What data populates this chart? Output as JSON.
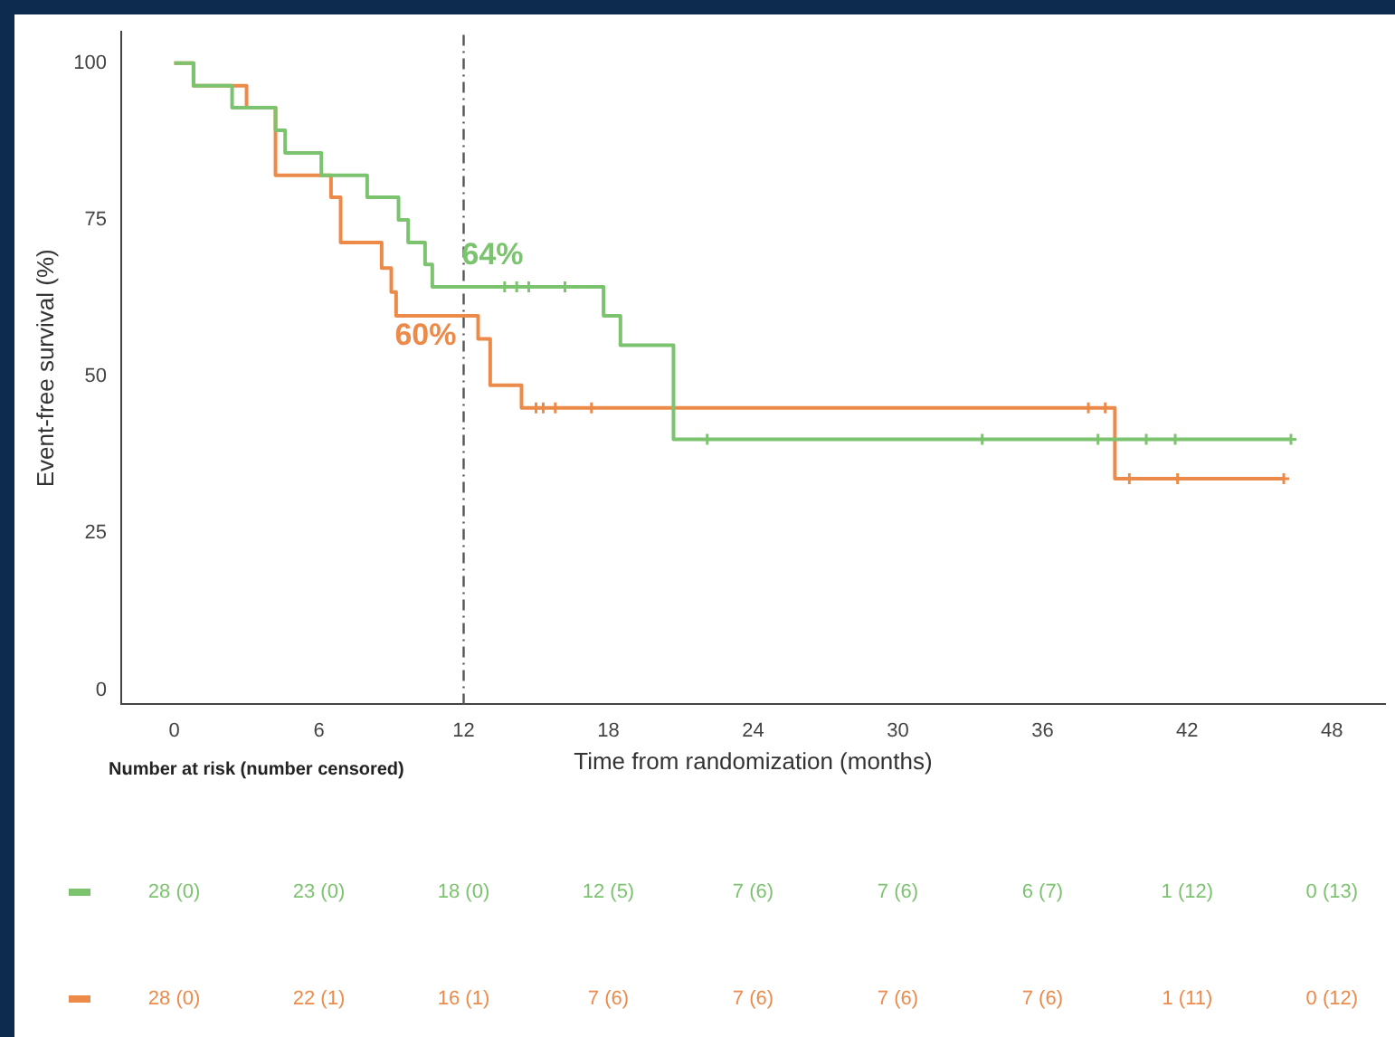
{
  "chart_data": {
    "type": "step",
    "xlabel": "Time from randomization (months)",
    "ylabel": "Event-free survival (%)",
    "xlim": [
      -2.2,
      50.2
    ],
    "xticks": [
      0,
      6,
      12,
      18,
      24,
      30,
      36,
      42,
      48
    ],
    "ylim": [
      -2.3,
      105
    ],
    "yticks": [
      0,
      25,
      50,
      75,
      100
    ],
    "grid": false,
    "legend": false,
    "line_style": "solid",
    "series": [
      {
        "color": "#7cc36f",
        "x": [
          0,
          0.8,
          2.4,
          4.2,
          4.6,
          6.1,
          8.0,
          9.3,
          9.7,
          10.4,
          10.7,
          17.8,
          18.5,
          20.7,
          46.3
        ],
        "values": [
          100,
          96.4,
          92.9,
          89.3,
          85.7,
          82.1,
          78.6,
          75,
          71.4,
          67.9,
          64.3,
          59.7,
          55,
          40,
          40
        ]
      },
      {
        "color": "#ec8a4a",
        "x": [
          0,
          0.8,
          3.0,
          4.2,
          6.5,
          6.9,
          8.6,
          9.0,
          9.2,
          12.6,
          13.1,
          14.4,
          39.0,
          46.0
        ],
        "values": [
          100,
          96.4,
          92.9,
          82.1,
          78.6,
          71.4,
          67.3,
          63.5,
          59.7,
          56,
          48.6,
          45,
          33.7,
          33.7
        ]
      },
      {
        "type": "scatter",
        "marker": "cross",
        "color": "#7cc36f",
        "x": [
          13.7,
          14.2,
          14.7,
          16.2,
          22.1,
          33.5,
          38.3,
          40.3,
          41.5,
          46.3
        ],
        "values": [
          64.3,
          64.3,
          64.3,
          64.3,
          40,
          40,
          40,
          40,
          40,
          40
        ]
      },
      {
        "type": "scatter",
        "marker": "cross",
        "color": "#ec8a4a",
        "x": [
          15.0,
          15.3,
          15.8,
          17.3,
          37.9,
          38.6,
          39.6,
          41.6,
          46.0
        ],
        "values": [
          45,
          45,
          45,
          45,
          45,
          45,
          33.7,
          33.7,
          33.7
        ]
      }
    ],
    "ref_lines": [
      {
        "axis": "x",
        "value": 12,
        "color": "#555555",
        "line_style": "dashed"
      }
    ],
    "annotations": [
      {
        "text": "64%",
        "x": 12,
        "y": 64
      },
      {
        "text": "60%",
        "x": 12,
        "y": 60
      },
      "Number at risk (number censored)",
      "28 (0)",
      "23 (0)",
      "18 (0)",
      "12 (5)",
      "7 (6)",
      "7 (6)",
      "6 (7)",
      "1 (12)",
      "0 (13)",
      "28 (0)",
      "22 (1)",
      "16 (1)",
      "7 (6)",
      "7 (6)",
      "7 (6)",
      "7 (6)",
      "1 (11)",
      "0 (12)"
    ]
  }
}
